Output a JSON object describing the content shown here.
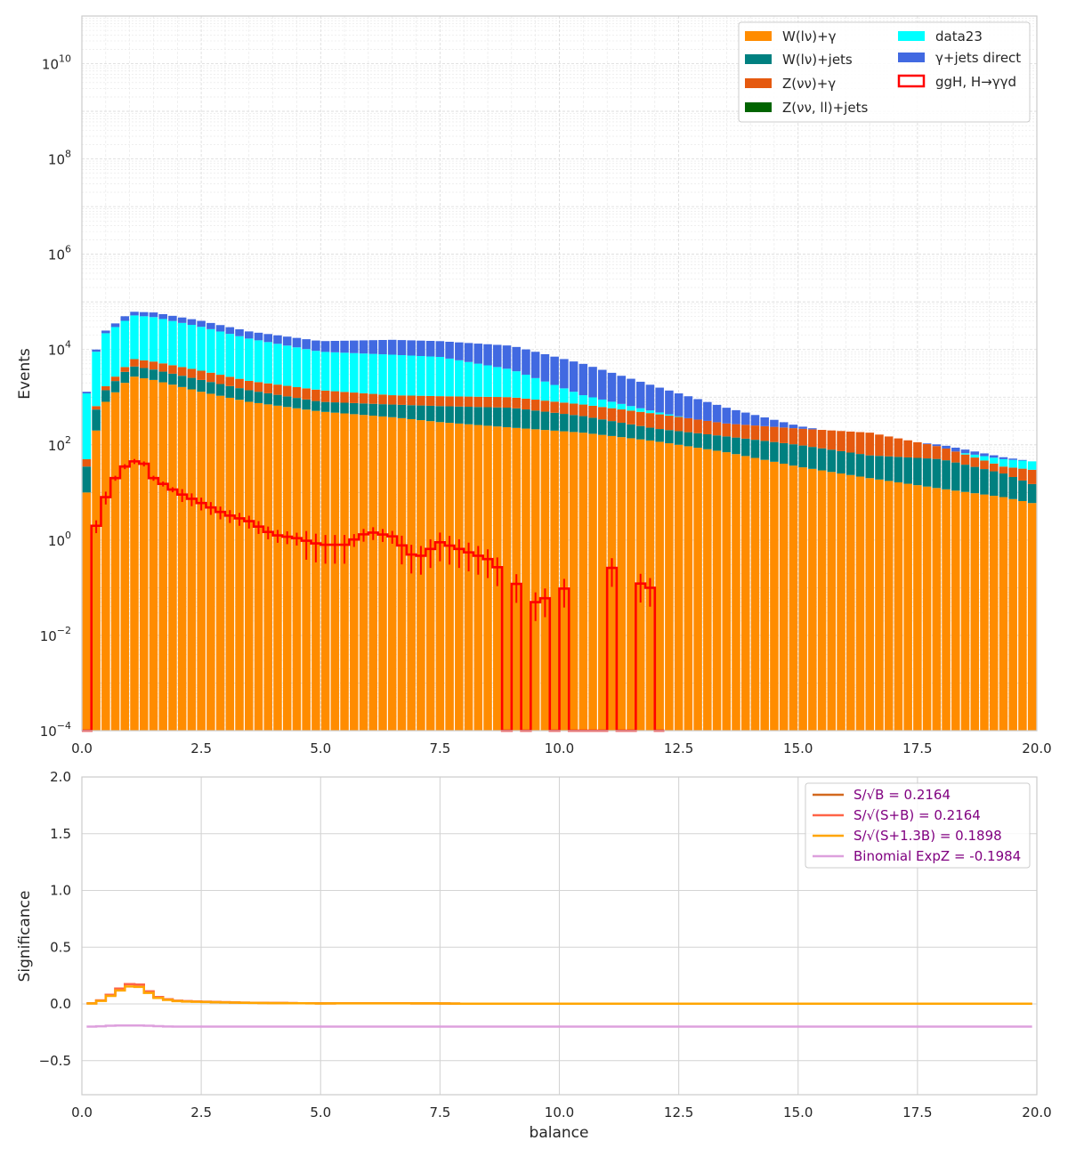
{
  "chart_data": [
    {
      "type": "bar",
      "stacked": true,
      "xlabel": "",
      "ylabel": "Events",
      "yscale": "log",
      "xlim": [
        0,
        20
      ],
      "ylim": [
        0.0001,
        100000000000
      ],
      "x_ticks": [
        "0.0",
        "2.5",
        "5.0",
        "7.5",
        "10.0",
        "12.5",
        "15.0",
        "17.5",
        "20.0"
      ],
      "y_ticks": [
        {
          "base": "10",
          "exp": "−4"
        },
        {
          "base": "10",
          "exp": "−2"
        },
        {
          "base": "10",
          "exp": "0"
        },
        {
          "base": "10",
          "exp": "2"
        },
        {
          "base": "10",
          "exp": "4"
        },
        {
          "base": "10",
          "exp": "6"
        },
        {
          "base": "10",
          "exp": "8"
        },
        {
          "base": "10",
          "exp": "10"
        }
      ],
      "grid": true,
      "legend_position": "upper-right",
      "bin_width": 0.2,
      "bin_count": 100,
      "stack_anchors": {
        "x": [
          0.1,
          0.3,
          0.5,
          0.9,
          1.1,
          1.5,
          2.5,
          3.5,
          5.0,
          6.5,
          7.5,
          9.0,
          10.5,
          12.0,
          13.5,
          15.0,
          16.5,
          18.0,
          19.3,
          19.9
        ],
        "W_lv_gamma": [
          10,
          200,
          800,
          2000,
          2700,
          2300,
          1300,
          800,
          500,
          380,
          300,
          230,
          180,
          120,
          70,
          35,
          20,
          12,
          8,
          6
        ],
        "W_lv_jets": [
          35,
          550,
          1400,
          3400,
          4400,
          3800,
          2300,
          1400,
          800,
          700,
          650,
          600,
          400,
          220,
          150,
          100,
          60,
          50,
          25,
          15
        ],
        "Z_vv_gamma": [
          50,
          650,
          1700,
          4300,
          6300,
          5600,
          3600,
          2200,
          1400,
          1100,
          1050,
          1000,
          700,
          450,
          280,
          220,
          180,
          90,
          35,
          30
        ],
        "data23": [
          1200,
          9000,
          22000,
          40000,
          52000,
          48000,
          30000,
          17000,
          9000,
          7800,
          7000,
          3800,
          1100,
          500,
          250,
          150,
          110,
          80,
          50,
          45
        ],
        "gamma_jets_direct": [
          1300,
          10000,
          25000,
          50000,
          62000,
          60000,
          40000,
          24000,
          15000,
          16000,
          15000,
          12000,
          5000,
          1700,
          600,
          250,
          140,
          100,
          55,
          45
        ]
      },
      "signal_anchors": {
        "x": [
          0.1,
          0.3,
          0.5,
          0.7,
          0.9,
          1.1,
          1.3,
          1.5,
          2.0,
          2.5,
          3.0,
          3.5,
          4.0,
          4.5,
          5.0,
          5.5,
          6.0,
          6.5,
          7.0,
          7.5,
          8.0,
          8.5,
          9.0,
          9.5,
          10.0,
          10.5,
          11.0,
          11.5,
          11.9
        ],
        "values": [
          0.0001,
          2,
          8,
          20,
          35,
          45,
          40,
          20,
          10,
          6,
          3.5,
          2.5,
          1.3,
          1.1,
          0.8,
          0.8,
          1.5,
          1.2,
          0.4,
          0.9,
          0.6,
          0.4,
          0.15,
          0.05,
          0.08,
          0.2,
          0.3,
          0.15,
          0.1
        ],
        "zero_bins_x": [
          8.9,
          9.3,
          9.9,
          10.3,
          10.5,
          10.7,
          10.9,
          11.3,
          11.5,
          12.1
        ]
      },
      "series": [
        {
          "name": "W(lν)+γ",
          "color": "#ff8c00",
          "style": "fill"
        },
        {
          "name": "W(lν)+jets",
          "color": "#008080",
          "style": "fill"
        },
        {
          "name": "Z(νν)+γ",
          "color": "#e5590f",
          "style": "fill"
        },
        {
          "name": "Z(νν, ll)+jets",
          "color": "#006400",
          "style": "fill"
        },
        {
          "name": "data23",
          "color": "#00ffff",
          "style": "fill"
        },
        {
          "name": "γ+jets direct",
          "color": "#4169e1",
          "style": "fill"
        },
        {
          "name": "ggH, H→γγd",
          "color": "#ff0000",
          "style": "step"
        }
      ]
    },
    {
      "type": "line",
      "xlabel": "balance",
      "ylabel": "Significance",
      "xlim": [
        0,
        20
      ],
      "ylim": [
        -0.8,
        2.0
      ],
      "x_ticks": [
        "0.0",
        "2.5",
        "5.0",
        "7.5",
        "10.0",
        "12.5",
        "15.0",
        "17.5",
        "20.0"
      ],
      "y_ticks": [
        "−0.5",
        "0.0",
        "0.5",
        "1.0",
        "1.5",
        "2.0"
      ],
      "grid": true,
      "legend_position": "upper-right",
      "sig_x": [
        0.1,
        0.3,
        0.5,
        0.7,
        0.9,
        1.1,
        1.3,
        1.5,
        1.7,
        1.9,
        2.1,
        2.5,
        3.0,
        3.5,
        4.0,
        5.0,
        6.0,
        7.5,
        8.0,
        20.0
      ],
      "sig_values": [
        0.0,
        0.01,
        0.05,
        0.11,
        0.16,
        0.19,
        0.15,
        0.07,
        0.05,
        0.03,
        0.025,
        0.02,
        0.015,
        0.01,
        0.008,
        0.005,
        0.006,
        0.005,
        0.002,
        0.002
      ],
      "binomial_values": [
        -0.2,
        -0.2,
        -0.195,
        -0.19,
        -0.19,
        -0.19,
        -0.19,
        -0.195,
        -0.198,
        -0.2,
        -0.2,
        -0.2,
        -0.2,
        -0.2,
        -0.2,
        -0.2,
        -0.2,
        -0.2,
        -0.2,
        -0.2
      ],
      "series": [
        {
          "name": "S/√B = 0.2164",
          "color": "#d2691e"
        },
        {
          "name": "S/√(S+B) = 0.2164",
          "color": "#ff6347"
        },
        {
          "name": "S/√(S+1.3B) = 0.1898",
          "color": "#ffa500"
        },
        {
          "name": "Binomial ExpZ = -0.1984",
          "color": "#dda0dd"
        }
      ]
    }
  ]
}
